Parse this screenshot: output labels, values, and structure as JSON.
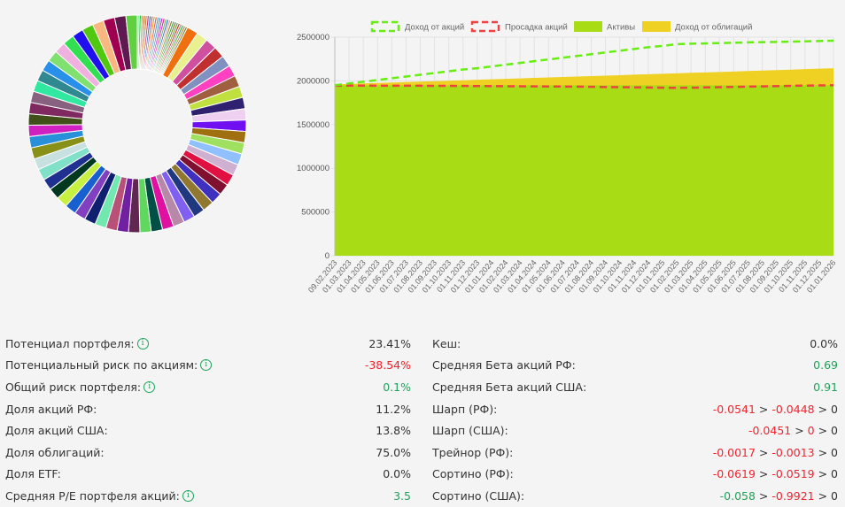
{
  "colors": {
    "red": "#f5222d",
    "green": "#23a05a",
    "text": "#333333"
  },
  "donut_chart": {
    "type": "pie",
    "thin_colors": [
      "#33ff66",
      "#22bb33",
      "#bb9966",
      "#cc6633",
      "#aa8844",
      "#cc3366",
      "#1177cc",
      "#dd4477",
      "#ccaa22",
      "#ee5555",
      "#33aacc",
      "#6688aa",
      "#aa33cc",
      "#dd22aa",
      "#66bb33",
      "#2266ee",
      "#ddaa77",
      "#888844",
      "#33aa55",
      "#996633",
      "#44aa22",
      "#cc2233",
      "#aa8866",
      "#22aa44",
      "#cc7744",
      "#558833"
    ],
    "thin_value": 0.35,
    "big_colors": [
      "#f07010",
      "#e8f090",
      "#d050a0",
      "#c03030",
      "#8090c0",
      "#ff40c0",
      "#a06040",
      "#c0e040",
      "#302070",
      "#f0d0f0",
      "#7010f0",
      "#a07010",
      "#a0e060",
      "#90c0ff",
      "#d0b0d0",
      "#e01040",
      "#801030",
      "#4030c0",
      "#907830",
      "#203880",
      "#8060f0",
      "#b888a8",
      "#e010a0",
      "#005048",
      "#60d860",
      "#602850",
      "#7020a0",
      "#b85078",
      "#70e8b0",
      "#102070",
      "#8040c0",
      "#1860d0",
      "#c8f040",
      "#003820",
      "#203090",
      "#80e0c8",
      "#c8e0e0",
      "#889018",
      "#2890d8",
      "#d020c0",
      "#405018",
      "#802860",
      "#886080",
      "#30e8a0",
      "#308890",
      "#2890e8",
      "#80e070",
      "#f0b0e0",
      "#30e050",
      "#2010f0",
      "#50c810",
      "#f8b880",
      "#a00050",
      "#601850",
      "#60d040"
    ],
    "big_value": 2.0
  },
  "chart_data": {
    "type": "area",
    "legend": [
      "Доход от акций",
      "Просадка акций",
      "Активы",
      "Доход от облигаций"
    ],
    "legend_placement": "top",
    "ylim": [
      0,
      2500000
    ],
    "yticks": [
      "0",
      "500000",
      "1000000",
      "1500000",
      "2000000",
      "2500000"
    ],
    "x": [
      "09.02.2023",
      "01.03.2023",
      "01.04.2023",
      "01.05.2023",
      "01.06.2023",
      "01.07.2023",
      "01.08.2023",
      "01.09.2023",
      "01.10.2023",
      "01.11.2023",
      "01.12.2023",
      "01.01.2024",
      "01.02.2024",
      "01.03.2024",
      "01.04.2024",
      "01.05.2024",
      "01.06.2024",
      "01.07.2024",
      "01.08.2024",
      "01.09.2024",
      "01.10.2024",
      "01.11.2024",
      "01.12.2024",
      "01.01.2025",
      "01.02.2025",
      "01.03.2025",
      "01.04.2025",
      "01.05.2025",
      "01.06.2025",
      "01.07.2025",
      "01.08.2025",
      "01.09.2025",
      "01.10.2025",
      "01.11.2025",
      "01.12.2025",
      "01.01.2026"
    ],
    "series": [
      {
        "name": "Доход от акций",
        "style": "dashed",
        "color": "#66ee11",
        "values": [
          1950000,
          1970000,
          1990000,
          2010000,
          2030000,
          2050000,
          2070000,
          2090000,
          2110000,
          2130000,
          2145000,
          2165000,
          2185000,
          2205000,
          2225000,
          2245000,
          2265000,
          2285000,
          2305000,
          2325000,
          2345000,
          2365000,
          2385000,
          2400000,
          2420000,
          2425000,
          2428000,
          2432000,
          2436000,
          2440000,
          2443000,
          2446000,
          2449000,
          2452000,
          2456000,
          2460000
        ]
      },
      {
        "name": "Просадка акций",
        "style": "dashed",
        "color": "#f04040",
        "values": [
          1945000,
          1946000,
          1946000,
          1945000,
          1945000,
          1944000,
          1944000,
          1943000,
          1943000,
          1942000,
          1941000,
          1940000,
          1939000,
          1938000,
          1937000,
          1936000,
          1935000,
          1934000,
          1932000,
          1930000,
          1928000,
          1926000,
          1924000,
          1922000,
          1920000,
          1922000,
          1925000,
          1928000,
          1931000,
          1934000,
          1937000,
          1940000,
          1943000,
          1946000,
          1948000,
          1950000
        ]
      },
      {
        "name": "Активы",
        "style": "fill",
        "color": "#a8dc14",
        "values": [
          1950000,
          1950000,
          1950000,
          1950000,
          1950000,
          1950000,
          1950000,
          1950000,
          1950000,
          1950000,
          1950000,
          1950000,
          1950000,
          1950000,
          1950000,
          1950000,
          1950000,
          1950000,
          1950000,
          1950000,
          1950000,
          1950000,
          1950000,
          1950000,
          1950000,
          1950000,
          1950000,
          1950000,
          1950000,
          1950000,
          1950000,
          1950000,
          1950000,
          1950000,
          1950000,
          1950000
        ]
      },
      {
        "name": "Доход от облигаций",
        "style": "fill",
        "color": "#eed122",
        "values": [
          1960000,
          1965000,
          1971000,
          1976000,
          1981000,
          1986000,
          1992000,
          1997000,
          2002000,
          2007000,
          2013000,
          2018000,
          2023000,
          2028000,
          2034000,
          2039000,
          2044000,
          2050000,
          2055000,
          2060000,
          2065000,
          2071000,
          2076000,
          2081000,
          2086000,
          2092000,
          2097000,
          2102000,
          2107000,
          2113000,
          2118000,
          2123000,
          2128000,
          2134000,
          2139000,
          2145000
        ]
      }
    ]
  },
  "stats_left": [
    {
      "label": "Потенциал портфеля:",
      "info": true,
      "parts": [
        {
          "v": "23.41%",
          "c": "text"
        }
      ]
    },
    {
      "label": "Потенциальный риск по акциям:",
      "info": true,
      "parts": [
        {
          "v": "-38.54%",
          "c": "red"
        }
      ]
    },
    {
      "label": "Общий риск портфеля:",
      "info": true,
      "parts": [
        {
          "v": "0.1%",
          "c": "green"
        }
      ]
    },
    {
      "label": "Доля акций РФ:",
      "info": false,
      "parts": [
        {
          "v": "11.2%",
          "c": "text"
        }
      ]
    },
    {
      "label": "Доля акций США:",
      "info": false,
      "parts": [
        {
          "v": "13.8%",
          "c": "text"
        }
      ]
    },
    {
      "label": "Доля облигаций:",
      "info": false,
      "parts": [
        {
          "v": "75.0%",
          "c": "text"
        }
      ]
    },
    {
      "label": "Доля ETF:",
      "info": false,
      "parts": [
        {
          "v": "0.0%",
          "c": "text"
        }
      ]
    },
    {
      "label": "Средняя P/E портфеля акций:",
      "info": true,
      "parts": [
        {
          "v": "3.5",
          "c": "green"
        }
      ]
    }
  ],
  "stats_right": [
    {
      "label": "Кеш:",
      "info": false,
      "parts": [
        {
          "v": "0.0%",
          "c": "text"
        }
      ]
    },
    {
      "label": "Средняя Бета акций РФ:",
      "info": false,
      "parts": [
        {
          "v": "0.69",
          "c": "green"
        }
      ]
    },
    {
      "label": "Средняя Бета акций США:",
      "info": false,
      "parts": [
        {
          "v": "0.91",
          "c": "green"
        }
      ]
    },
    {
      "label": "Шарп (РФ):",
      "info": false,
      "parts": [
        {
          "v": "-0.0541",
          "c": "red"
        },
        {
          "v": " > ",
          "c": "text"
        },
        {
          "v": "-0.0448",
          "c": "red"
        },
        {
          "v": " > 0",
          "c": "text"
        }
      ]
    },
    {
      "label": "Шарп (США):",
      "info": false,
      "parts": [
        {
          "v": "-0.0451",
          "c": "red"
        },
        {
          "v": " > ",
          "c": "text"
        },
        {
          "v": "0",
          "c": "red"
        },
        {
          "v": " > 0",
          "c": "text"
        }
      ]
    },
    {
      "label": "Трейнор (РФ):",
      "info": false,
      "parts": [
        {
          "v": "-0.0017",
          "c": "red"
        },
        {
          "v": " > ",
          "c": "text"
        },
        {
          "v": "-0.0013",
          "c": "red"
        },
        {
          "v": " > 0",
          "c": "text"
        }
      ]
    },
    {
      "label": "Сортино (РФ):",
      "info": false,
      "parts": [
        {
          "v": "-0.0619",
          "c": "red"
        },
        {
          "v": " > ",
          "c": "text"
        },
        {
          "v": "-0.0519",
          "c": "red"
        },
        {
          "v": " > 0",
          "c": "text"
        }
      ]
    },
    {
      "label": "Сортино (США):",
      "info": false,
      "parts": [
        {
          "v": "-0.058",
          "c": "green"
        },
        {
          "v": " > ",
          "c": "text"
        },
        {
          "v": "-0.9921",
          "c": "red"
        },
        {
          "v": " > 0",
          "c": "text"
        }
      ]
    }
  ],
  "info_icon_glyph": "i"
}
